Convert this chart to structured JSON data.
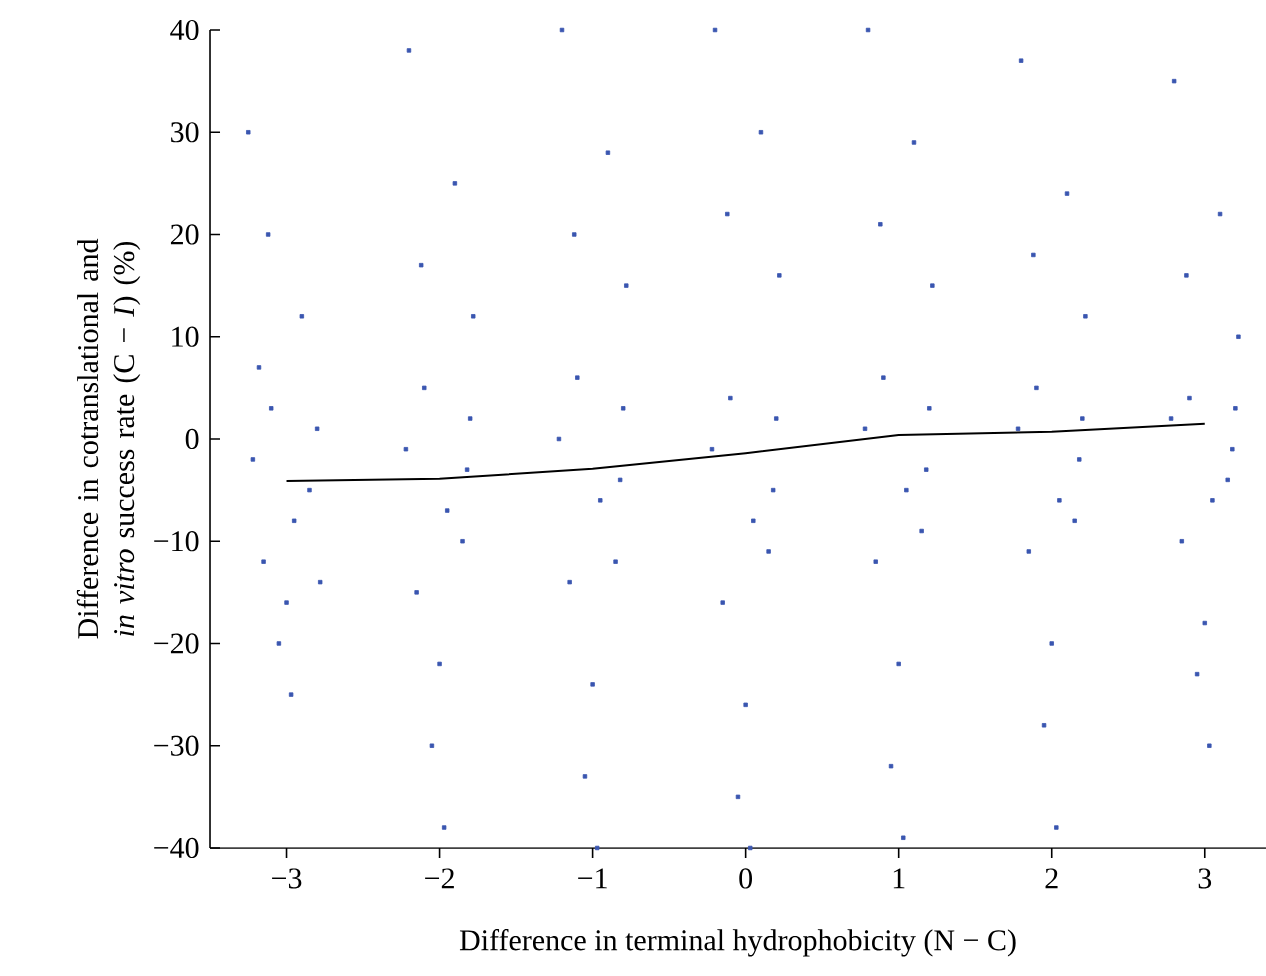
{
  "chart_data": {
    "type": "scatter",
    "xlabel": "Difference in terminal hydrophobicity (N − C)",
    "ylabel": "Difference in cotranslational and *in vitro* success rate (C − *I*) (%)",
    "xlim": [
      -3.5,
      3.4
    ],
    "ylim": [
      -40,
      40
    ],
    "xticks": [
      {
        "value": -3,
        "label": "−3"
      },
      {
        "value": -2,
        "label": "−2"
      },
      {
        "value": -1,
        "label": "−1"
      },
      0,
      1,
      2,
      3
    ],
    "yticks": [
      {
        "value": -40,
        "label": "−40"
      },
      {
        "value": -30,
        "label": "−30"
      },
      {
        "value": -20,
        "label": "−20"
      },
      {
        "value": -10,
        "label": "−10"
      },
      0,
      10,
      20,
      30,
      40
    ],
    "grid": false,
    "legend": false,
    "series": [
      {
        "marker": "square",
        "color": "#3a56b0",
        "x": [
          -3.22,
          -3.1,
          -2.95,
          -2.8,
          -3.15,
          -3.0,
          -2.85,
          -3.25,
          -2.9,
          -3.05,
          -2.78,
          -3.18,
          -2.97,
          -3.12,
          -2.22,
          -2.1,
          -1.95,
          -1.8,
          -2.15,
          -2.0,
          -1.85,
          -2.2,
          -1.9,
          -2.05,
          -1.78,
          -2.12,
          -1.97,
          -1.82,
          -1.22,
          -1.1,
          -0.95,
          -0.8,
          -1.15,
          -1.0,
          -0.85,
          -1.2,
          -0.9,
          -1.05,
          -0.78,
          -1.12,
          -0.97,
          -0.82,
          -0.22,
          -0.1,
          0.05,
          0.2,
          -0.15,
          0.0,
          0.15,
          -0.2,
          0.1,
          -0.05,
          0.22,
          -0.12,
          0.03,
          0.18,
          0.78,
          0.9,
          1.05,
          1.2,
          0.85,
          1.0,
          1.15,
          0.8,
          1.1,
          0.95,
          1.22,
          0.88,
          1.03,
          1.18,
          1.78,
          1.9,
          2.05,
          2.2,
          1.85,
          2.0,
          2.15,
          1.8,
          2.1,
          1.95,
          2.22,
          1.88,
          2.03,
          2.18,
          2.78,
          2.9,
          3.05,
          3.2,
          2.85,
          3.0,
          3.15,
          2.8,
          3.1,
          2.95,
          3.22,
          2.88,
          3.03,
          3.18
        ],
        "values": [
          -2,
          3,
          -8,
          1,
          -12,
          -16,
          -5,
          30,
          12,
          -20,
          -14,
          7,
          -25,
          20,
          -1,
          5,
          -7,
          2,
          -15,
          -22,
          -10,
          38,
          25,
          -30,
          12,
          17,
          -38,
          -3,
          0,
          6,
          -6,
          3,
          -14,
          -24,
          -12,
          40,
          28,
          -33,
          15,
          20,
          -40,
          -4,
          -1,
          4,
          -8,
          2,
          -16,
          -26,
          -11,
          40,
          30,
          -35,
          16,
          22,
          -40,
          -5,
          1,
          6,
          -5,
          3,
          -12,
          -22,
          -9,
          40,
          29,
          -32,
          15,
          21,
          -39,
          -3,
          1,
          5,
          -6,
          2,
          -11,
          -20,
          -8,
          37,
          24,
          -28,
          12,
          18,
          -38,
          -2,
          2,
          4,
          -6,
          3,
          -10,
          -18,
          -4,
          35,
          22,
          -23,
          10,
          16,
          -30,
          -1
        ]
      },
      {
        "type": "line",
        "marker": "none",
        "color": "#000000",
        "x": [
          -3,
          -2,
          -1,
          0,
          1,
          2,
          3
        ],
        "values": [
          -4.1,
          -3.9,
          -2.9,
          -1.4,
          0.4,
          0.7,
          1.5
        ]
      }
    ]
  }
}
